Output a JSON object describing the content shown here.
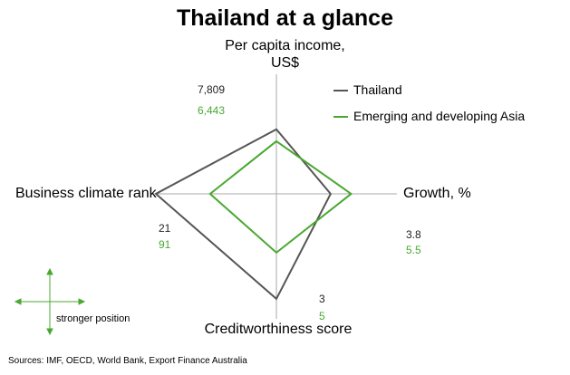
{
  "title": "Thailand at a glance",
  "chart_data": {
    "type": "radar",
    "axes": [
      {
        "key": "top",
        "label_line1": "Per capita income,",
        "label_line2": "US$"
      },
      {
        "key": "right",
        "label": "Growth, %"
      },
      {
        "key": "bottom",
        "label": "Creditworthiness score"
      },
      {
        "key": "left",
        "label": "Business climate rank"
      }
    ],
    "series": [
      {
        "name": "Thailand",
        "color": "#555555",
        "values": {
          "top": "7,809",
          "right": "3.8",
          "bottom": "3",
          "left": "21"
        },
        "relative_position": {
          "top": 0.54,
          "right": 0.45,
          "bottom": 0.84,
          "left": 1.0
        }
      },
      {
        "name": "Emerging and developing Asia",
        "color": "#4aa832",
        "values": {
          "top": "6,443",
          "right": "5.5",
          "bottom": "5",
          "left": "91"
        },
        "relative_position": {
          "top": 0.44,
          "right": 0.62,
          "bottom": 0.47,
          "left": 0.55
        }
      }
    ],
    "grid": true,
    "legend_position": "top-right"
  },
  "key_note": "stronger position",
  "source": "Sources: IMF, OECD, World Bank, Export Finance Australia"
}
